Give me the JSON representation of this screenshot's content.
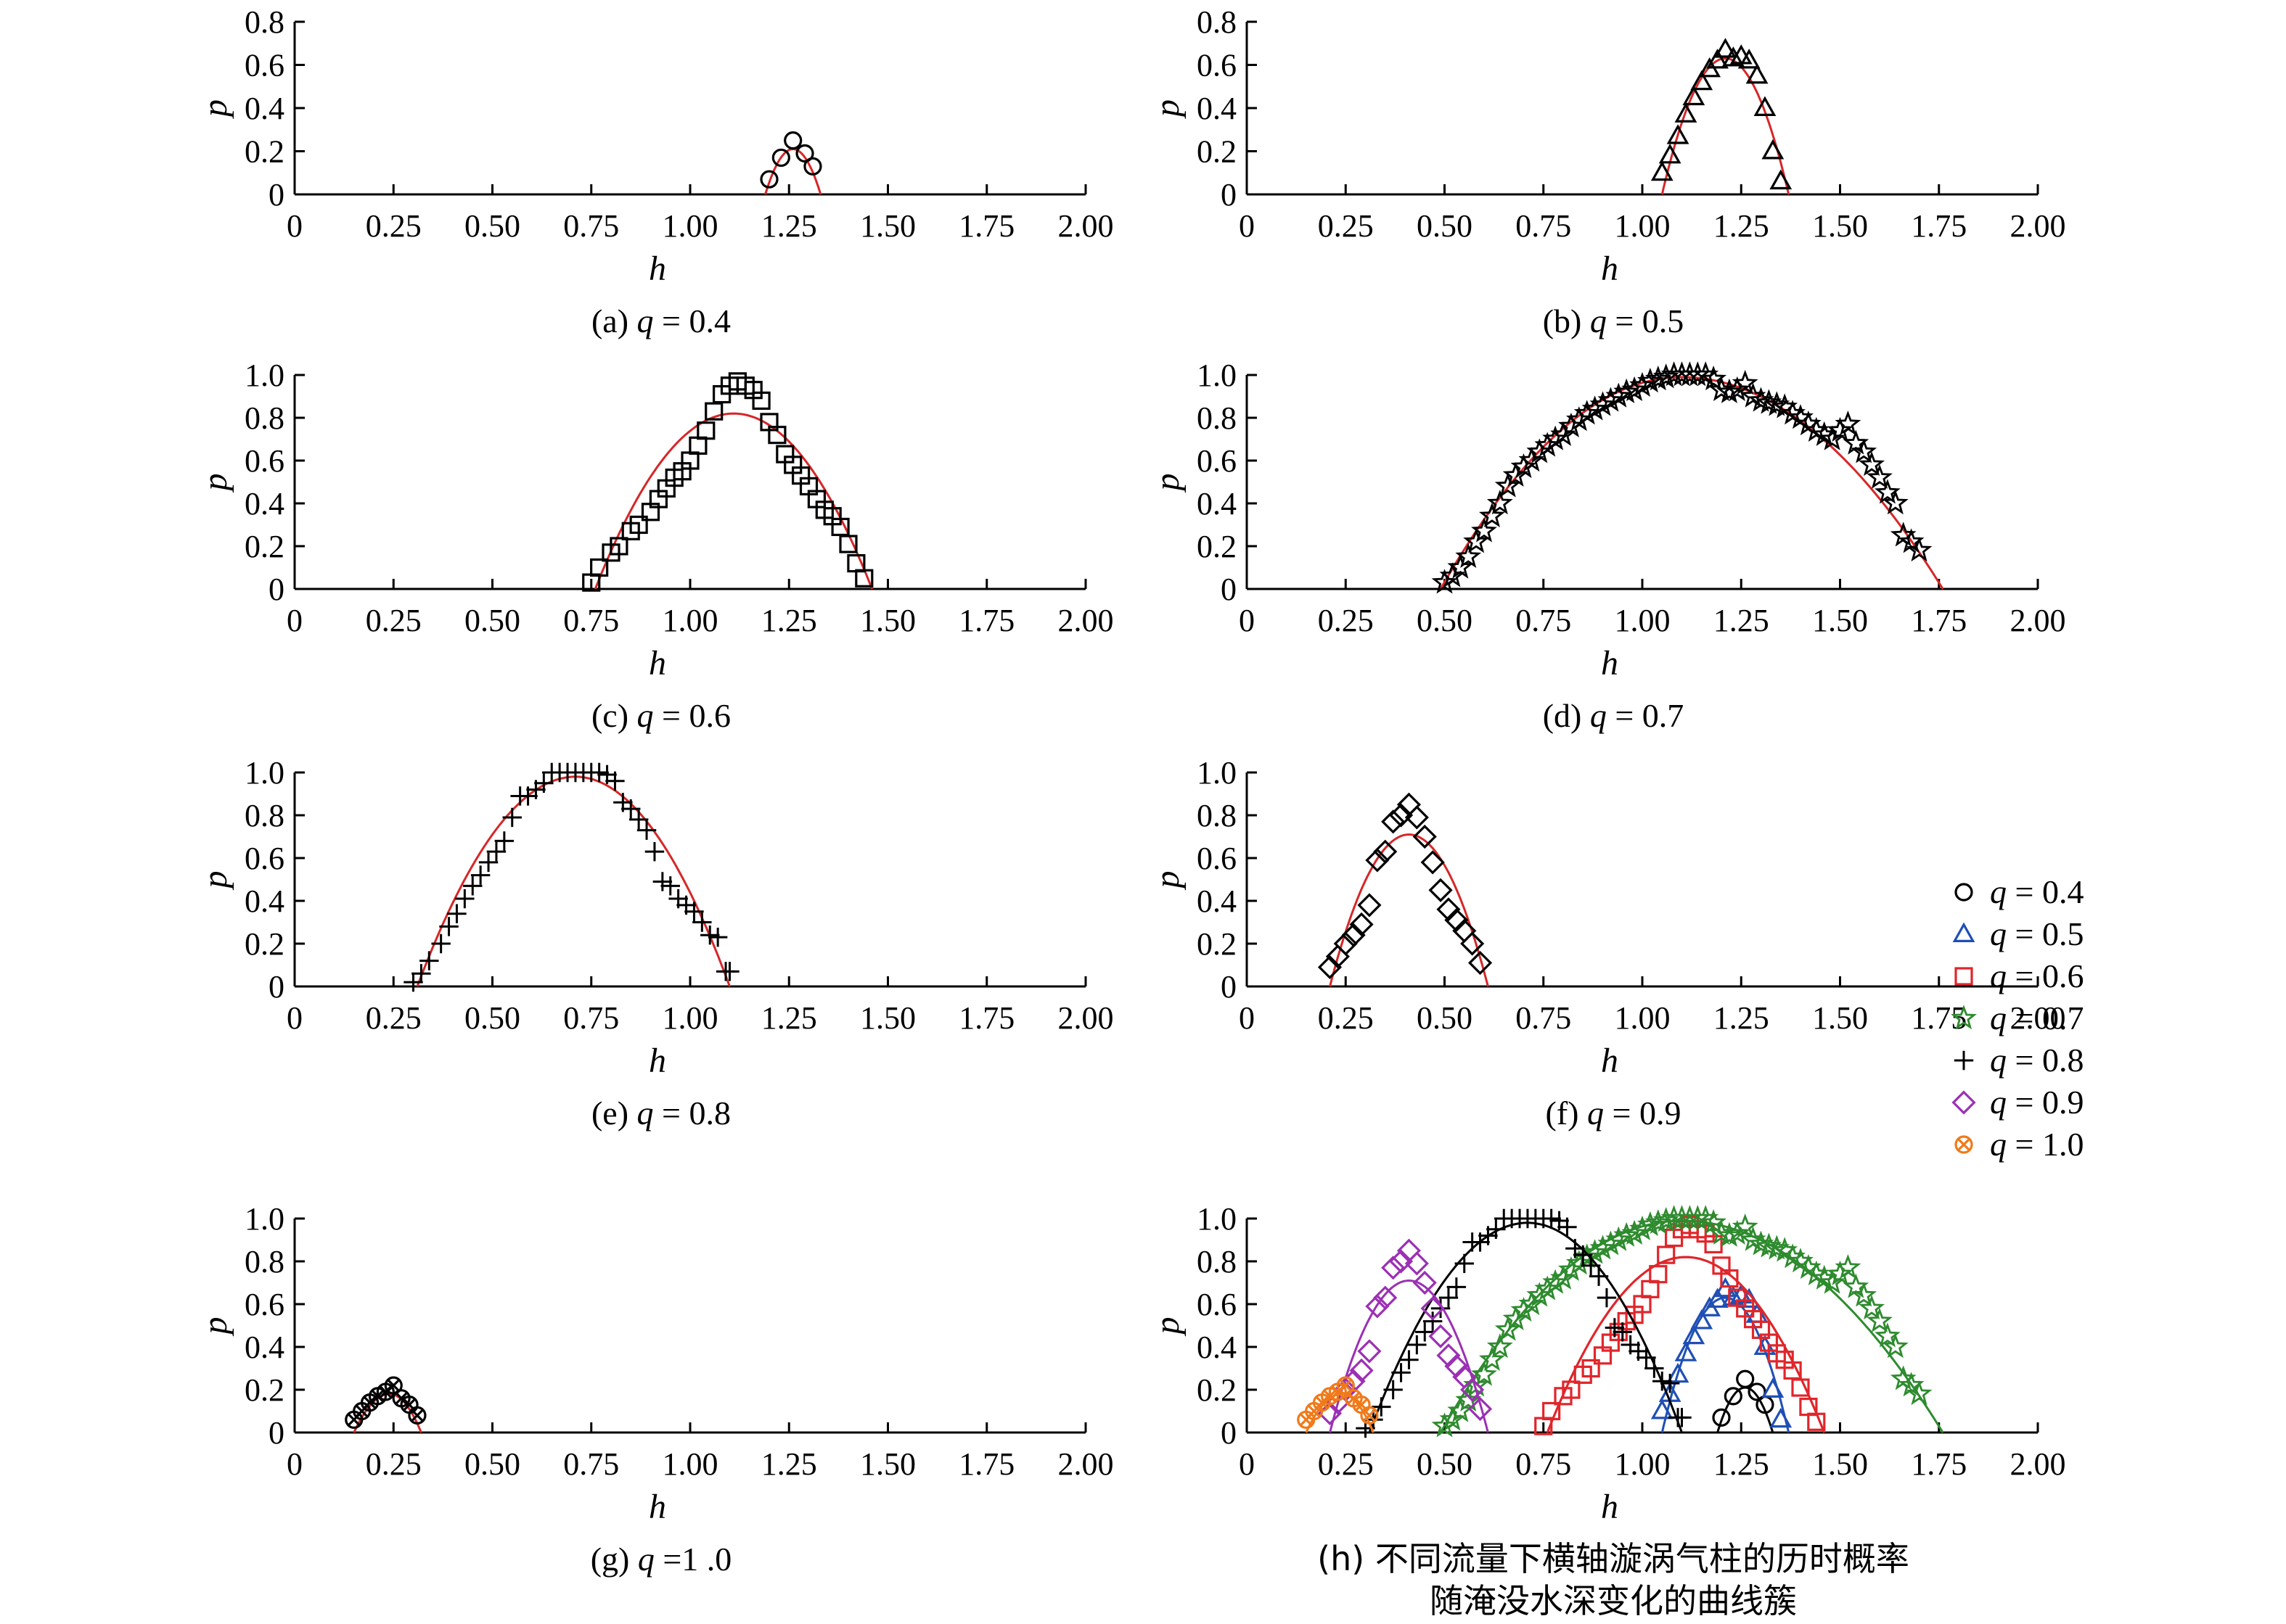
{
  "chart_data": [
    {
      "id": "a",
      "type": "scatter",
      "caption": "(a) q = 0.4",
      "xlabel": "h",
      "ylabel": "p",
      "xlim": [
        0,
        2.0
      ],
      "ylim": [
        0,
        0.8
      ],
      "xticks": [
        "0",
        "0.25",
        "0.50",
        "0.75",
        "1.00",
        "1.25",
        "1.50",
        "1.75",
        "2.00"
      ],
      "yticks": [
        "0",
        "0.2",
        "0.4",
        "0.6",
        "0.8"
      ],
      "series": [
        {
          "marker": "circle",
          "x": [
            1.2,
            1.23,
            1.26,
            1.29,
            1.31
          ],
          "y": [
            0.07,
            0.17,
            0.25,
            0.19,
            0.13
          ]
        }
      ],
      "fit": {
        "color": "#d62728",
        "x0": 1.19,
        "x1": 1.33,
        "peak_x": 1.26,
        "peak_y": 0.21
      }
    },
    {
      "id": "b",
      "type": "scatter",
      "caption": "(b) q = 0.5",
      "xlabel": "h",
      "ylabel": "p",
      "xlim": [
        0,
        2.0
      ],
      "ylim": [
        0,
        0.8
      ],
      "xticks": [
        "0",
        "0.25",
        "0.50",
        "0.75",
        "1.00",
        "1.25",
        "1.50",
        "1.75",
        "2.00"
      ],
      "yticks": [
        "0",
        "0.2",
        "0.4",
        "0.6",
        "0.8"
      ],
      "series": [
        {
          "marker": "triangle",
          "x": [
            1.05,
            1.07,
            1.09,
            1.11,
            1.13,
            1.15,
            1.17,
            1.19,
            1.21,
            1.23,
            1.25,
            1.27,
            1.29,
            1.31,
            1.33,
            1.35
          ],
          "y": [
            0.1,
            0.18,
            0.27,
            0.37,
            0.45,
            0.52,
            0.58,
            0.62,
            0.67,
            0.63,
            0.64,
            0.62,
            0.55,
            0.4,
            0.2,
            0.06
          ]
        }
      ],
      "fit": {
        "color": "#d62728",
        "x0": 1.05,
        "x1": 1.37,
        "peak_x": 1.21,
        "peak_y": 0.63
      }
    },
    {
      "id": "c",
      "type": "scatter",
      "caption": "(c) q = 0.6",
      "xlabel": "h",
      "ylabel": "p",
      "xlim": [
        0,
        2.0
      ],
      "ylim": [
        0,
        1.0
      ],
      "xticks": [
        "0",
        "0.25",
        "0.50",
        "0.75",
        "1.00",
        "1.25",
        "1.50",
        "1.75",
        "2.00"
      ],
      "yticks": [
        "0",
        "0.2",
        "0.4",
        "0.6",
        "0.8",
        "1.0"
      ],
      "series": [
        {
          "marker": "square",
          "x": [
            0.75,
            0.77,
            0.8,
            0.82,
            0.85,
            0.87,
            0.9,
            0.92,
            0.94,
            0.96,
            0.98,
            1.0,
            1.02,
            1.04,
            1.06,
            1.08,
            1.1,
            1.12,
            1.14,
            1.16,
            1.18,
            1.2,
            1.22,
            1.24,
            1.26,
            1.28,
            1.3,
            1.32,
            1.34,
            1.36,
            1.38,
            1.4,
            1.42,
            1.44
          ],
          "y": [
            0.03,
            0.1,
            0.17,
            0.2,
            0.27,
            0.3,
            0.36,
            0.42,
            0.47,
            0.52,
            0.55,
            0.6,
            0.67,
            0.74,
            0.83,
            0.91,
            0.95,
            0.97,
            0.95,
            0.93,
            0.88,
            0.78,
            0.72,
            0.63,
            0.58,
            0.53,
            0.48,
            0.42,
            0.37,
            0.34,
            0.29,
            0.21,
            0.12,
            0.05
          ]
        }
      ],
      "fit": {
        "color": "#d62728",
        "x0": 0.76,
        "x1": 1.46,
        "peak_x": 1.11,
        "peak_y": 0.82
      }
    },
    {
      "id": "d",
      "type": "scatter",
      "caption": "(d) q = 0.7",
      "xlabel": "h",
      "ylabel": "p",
      "xlim": [
        0,
        2.0
      ],
      "ylim": [
        0,
        1.0
      ],
      "xticks": [
        "0",
        "0.25",
        "0.50",
        "0.75",
        "1.00",
        "1.25",
        "1.50",
        "1.75",
        "2.00"
      ],
      "yticks": [
        "0",
        "0.2",
        "0.4",
        "0.6",
        "0.8",
        "1.0"
      ],
      "series": [
        {
          "marker": "star",
          "x": [
            0.5,
            0.52,
            0.54,
            0.56,
            0.58,
            0.6,
            0.62,
            0.64,
            0.66,
            0.68,
            0.7,
            0.72,
            0.74,
            0.76,
            0.78,
            0.8,
            0.82,
            0.84,
            0.86,
            0.88,
            0.9,
            0.92,
            0.94,
            0.96,
            0.98,
            1.0,
            1.02,
            1.04,
            1.06,
            1.08,
            1.1,
            1.12,
            1.14,
            1.16,
            1.18,
            1.2,
            1.22,
            1.24,
            1.26,
            1.28,
            1.3,
            1.32,
            1.34,
            1.36,
            1.38,
            1.4,
            1.42,
            1.44,
            1.46,
            1.48,
            1.5,
            1.52,
            1.54,
            1.56,
            1.58,
            1.6,
            1.62,
            1.64,
            1.66,
            1.68,
            1.7
          ],
          "y": [
            0.03,
            0.06,
            0.1,
            0.15,
            0.22,
            0.27,
            0.34,
            0.4,
            0.48,
            0.53,
            0.57,
            0.6,
            0.64,
            0.67,
            0.7,
            0.72,
            0.76,
            0.79,
            0.82,
            0.84,
            0.86,
            0.88,
            0.9,
            0.92,
            0.93,
            0.95,
            0.97,
            0.98,
            0.99,
            1.0,
            1.0,
            1.0,
            1.0,
            1.0,
            0.98,
            0.93,
            0.92,
            0.93,
            0.96,
            0.9,
            0.88,
            0.87,
            0.86,
            0.85,
            0.82,
            0.8,
            0.77,
            0.74,
            0.72,
            0.7,
            0.74,
            0.77,
            0.68,
            0.64,
            0.58,
            0.52,
            0.45,
            0.4,
            0.25,
            0.22,
            0.18
          ]
        }
      ],
      "fit": {
        "color": "#d62728",
        "x0": 0.49,
        "x1": 1.76,
        "peak_x": 1.1,
        "peak_y": 0.99
      }
    },
    {
      "id": "e",
      "type": "scatter",
      "caption": "(e) q = 0.8",
      "xlabel": "h",
      "ylabel": "p",
      "xlim": [
        0,
        2.0
      ],
      "ylim": [
        0,
        1.0
      ],
      "xticks": [
        "0",
        "0.25",
        "0.50",
        "0.75",
        "1.00",
        "1.25",
        "1.50",
        "1.75",
        "2.00"
      ],
      "yticks": [
        "0",
        "0.2",
        "0.4",
        "0.6",
        "0.8",
        "1.0"
      ],
      "series": [
        {
          "marker": "plus",
          "x": [
            0.3,
            0.32,
            0.34,
            0.37,
            0.39,
            0.41,
            0.43,
            0.45,
            0.47,
            0.49,
            0.51,
            0.53,
            0.55,
            0.57,
            0.59,
            0.61,
            0.63,
            0.65,
            0.67,
            0.69,
            0.71,
            0.73,
            0.75,
            0.77,
            0.79,
            0.81,
            0.83,
            0.85,
            0.87,
            0.89,
            0.91,
            0.93,
            0.95,
            0.97,
            0.99,
            1.01,
            1.03,
            1.05,
            1.07,
            1.09,
            1.1
          ],
          "y": [
            0.02,
            0.06,
            0.12,
            0.2,
            0.28,
            0.34,
            0.41,
            0.47,
            0.52,
            0.58,
            0.63,
            0.68,
            0.79,
            0.89,
            0.89,
            0.92,
            0.95,
            1.0,
            1.0,
            1.0,
            1.0,
            1.0,
            1.0,
            1.0,
            0.99,
            0.96,
            0.86,
            0.83,
            0.78,
            0.73,
            0.63,
            0.49,
            0.47,
            0.41,
            0.38,
            0.35,
            0.3,
            0.24,
            0.23,
            0.07,
            0.07
          ]
        }
      ],
      "fit": {
        "color": "#d62728",
        "x0": 0.31,
        "x1": 1.1,
        "peak_x": 0.71,
        "peak_y": 0.98
      }
    },
    {
      "id": "f",
      "type": "scatter",
      "caption": "(f) q = 0.9",
      "xlabel": "h",
      "ylabel": "p",
      "xlim": [
        0,
        2.0
      ],
      "ylim": [
        0,
        1.0
      ],
      "xticks": [
        "0",
        "0.25",
        "0.50",
        "0.75",
        "1.00",
        "1.25",
        "1.50",
        "1.75",
        "2.00"
      ],
      "yticks": [
        "0",
        "0.2",
        "0.4",
        "0.6",
        "0.8",
        "1.0"
      ],
      "series": [
        {
          "marker": "diamond",
          "x": [
            0.21,
            0.23,
            0.25,
            0.27,
            0.29,
            0.31,
            0.33,
            0.35,
            0.37,
            0.39,
            0.41,
            0.43,
            0.45,
            0.47,
            0.49,
            0.51,
            0.53,
            0.55,
            0.57,
            0.59
          ],
          "y": [
            0.09,
            0.14,
            0.2,
            0.24,
            0.29,
            0.38,
            0.59,
            0.63,
            0.77,
            0.8,
            0.85,
            0.79,
            0.7,
            0.58,
            0.45,
            0.36,
            0.31,
            0.26,
            0.2,
            0.11
          ]
        }
      ],
      "fit": {
        "color": "#d62728",
        "x0": 0.21,
        "x1": 0.61,
        "peak_x": 0.41,
        "peak_y": 0.71
      }
    },
    {
      "id": "g",
      "type": "scatter",
      "caption": "(g) q =1 .0",
      "xlabel": "h",
      "ylabel": "p",
      "xlim": [
        0,
        2.0
      ],
      "ylim": [
        0,
        1.0
      ],
      "xticks": [
        "0",
        "0.25",
        "0.50",
        "0.75",
        "1.00",
        "1.25",
        "1.50",
        "1.75",
        "2.00"
      ],
      "yticks": [
        "0",
        "0.2",
        "0.4",
        "0.6",
        "0.8",
        "1.0"
      ],
      "series": [
        {
          "marker": "circle-x",
          "x": [
            0.15,
            0.17,
            0.19,
            0.21,
            0.23,
            0.25,
            0.27,
            0.29,
            0.31
          ],
          "y": [
            0.06,
            0.1,
            0.14,
            0.17,
            0.19,
            0.22,
            0.16,
            0.13,
            0.08
          ]
        }
      ],
      "fit": {
        "color": "#d62728",
        "x0": 0.15,
        "x1": 0.32,
        "peak_x": 0.24,
        "peak_y": 0.18
      }
    },
    {
      "id": "h",
      "type": "scatter",
      "caption_lines": [
        "(h) 不同流量下横轴漩涡气柱的历时概率",
        "随淹没水深变化的曲线簇"
      ],
      "xlabel": "h",
      "ylabel": "p",
      "xlim": [
        0,
        2.0
      ],
      "ylim": [
        0,
        1.0
      ],
      "xticks": [
        "0",
        "0.25",
        "0.50",
        "0.75",
        "1.00",
        "1.25",
        "1.50",
        "1.75",
        "2.00"
      ],
      "yticks": [
        "0",
        "0.2",
        "0.4",
        "0.6",
        "0.8",
        "1.0"
      ],
      "legend_position": "top-right",
      "legend": [
        {
          "label": "q = 0.4",
          "marker": "circle",
          "color": "#000000"
        },
        {
          "label": "q = 0.5",
          "marker": "triangle",
          "color": "#1f4fb4"
        },
        {
          "label": "q = 0.6",
          "marker": "square",
          "color": "#e0262b"
        },
        {
          "label": "q = 0.7",
          "marker": "star",
          "color": "#2e8b2e"
        },
        {
          "label": "q = 0.8",
          "marker": "plus",
          "color": "#000000"
        },
        {
          "label": "q = 0.9",
          "marker": "diamond",
          "color": "#9b30b4"
        },
        {
          "label": "q = 1.0",
          "marker": "circle-x",
          "color": "#f07a1a"
        }
      ],
      "series_from_panels": [
        "a",
        "b",
        "c",
        "d",
        "e",
        "f",
        "g"
      ]
    }
  ]
}
